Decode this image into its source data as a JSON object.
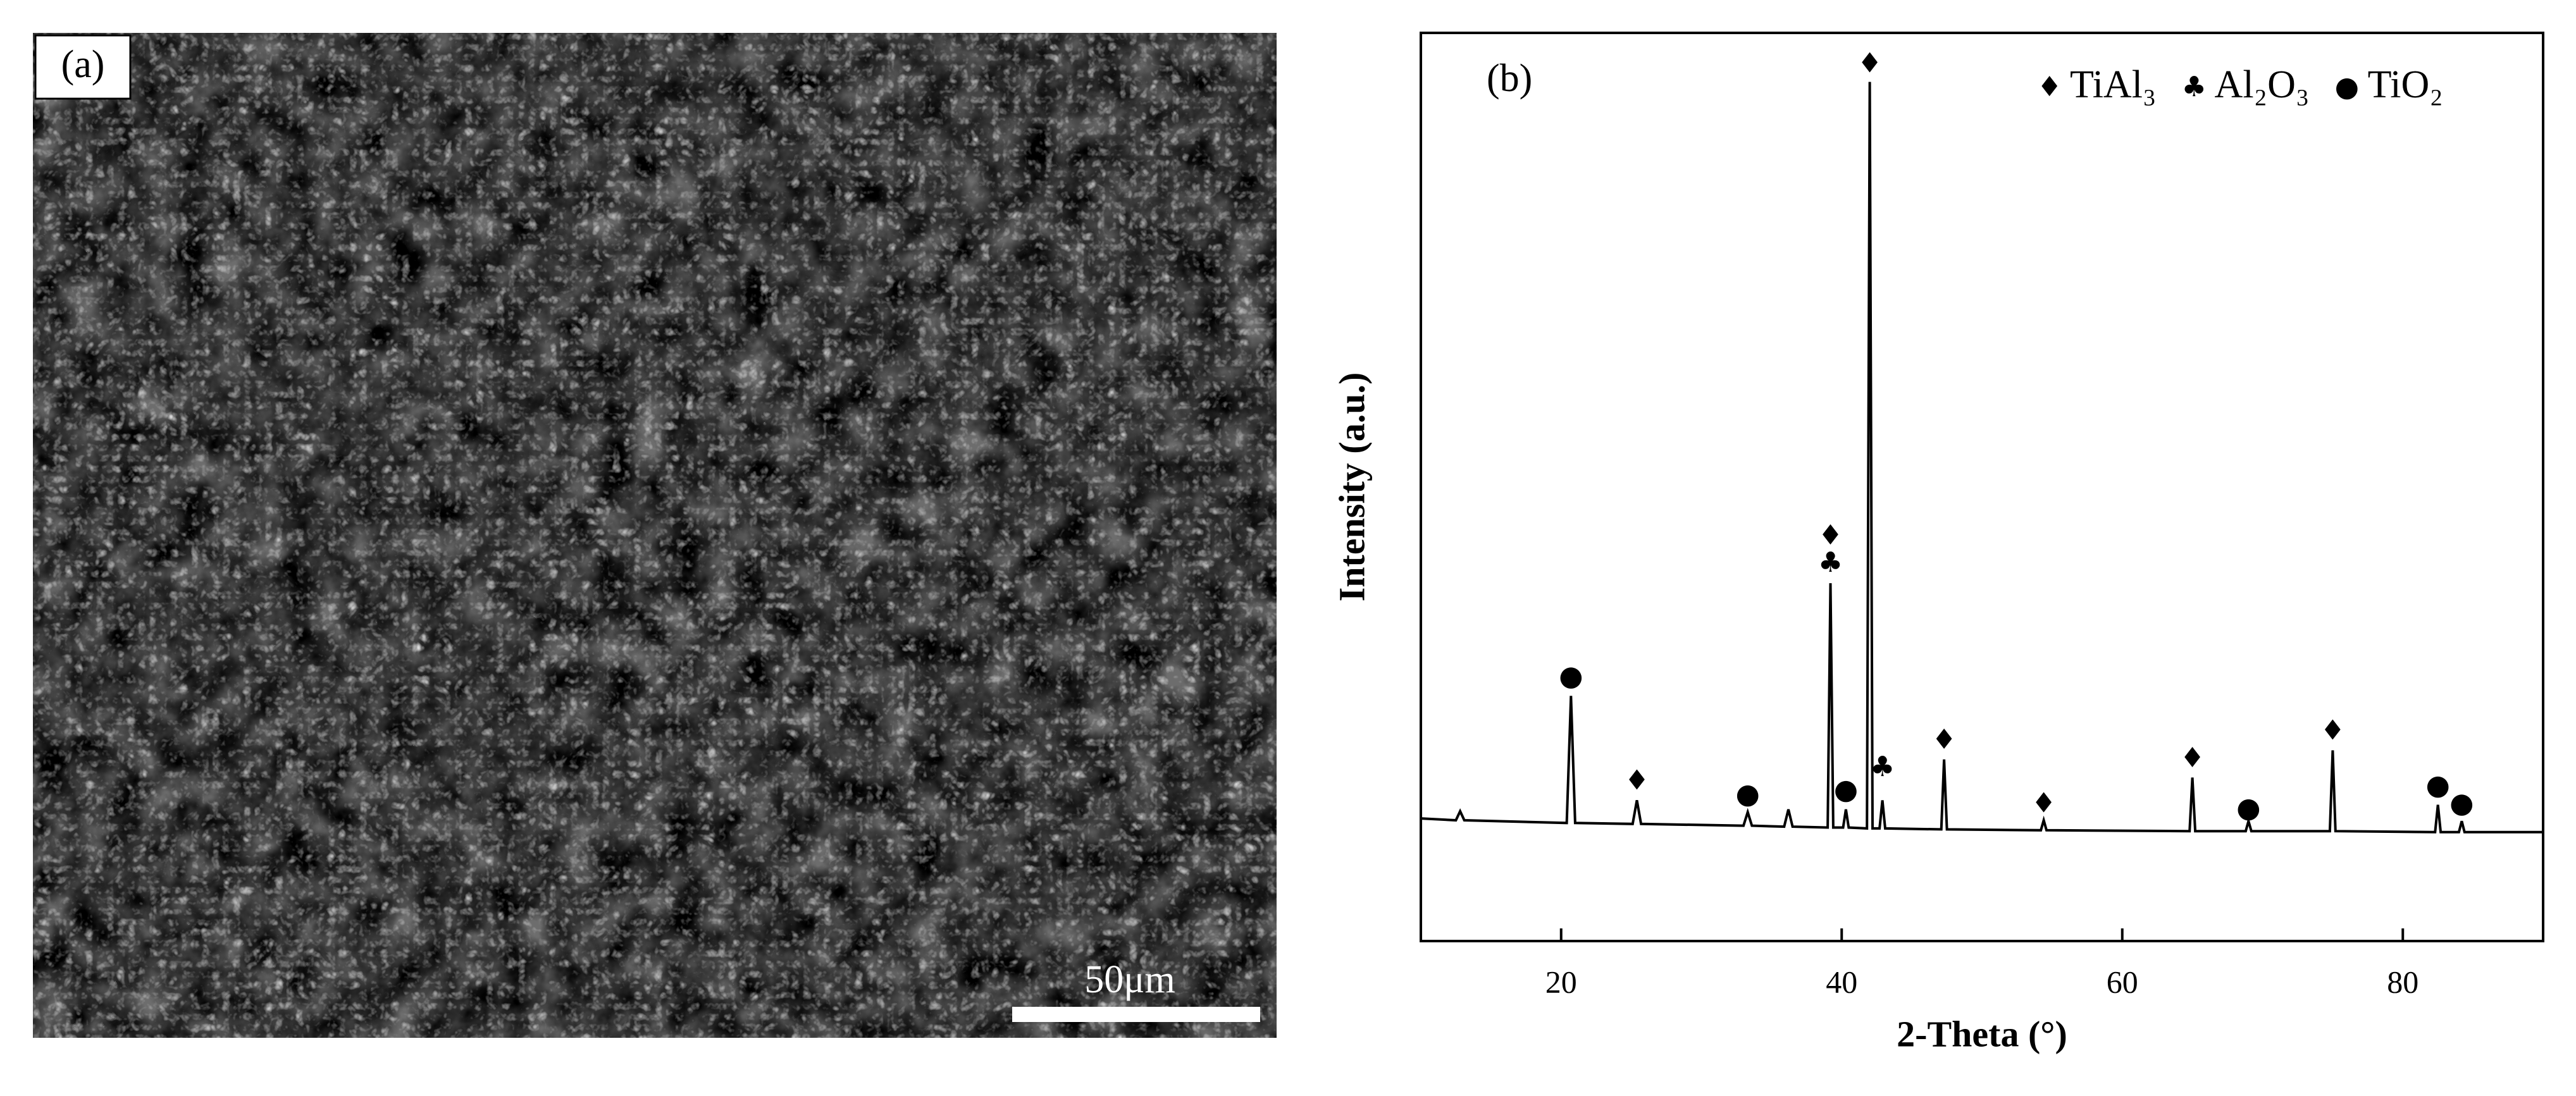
{
  "panel_a": {
    "label": "(a)",
    "scale_bar": "50μm"
  },
  "chart_data": {
    "type": "line",
    "panel_label": "(b)",
    "xlabel": "2-Theta (°)",
    "ylabel": "Intensity (a.u.)",
    "xlim": [
      10,
      90
    ],
    "xticks": [
      20,
      40,
      60,
      80
    ],
    "ylim": [
      0,
      100
    ],
    "series": [
      {
        "color": "#000000",
        "x": [
          10,
          12.5,
          12.8,
          13.1,
          20.4,
          20.7,
          21.0,
          25.1,
          25.4,
          25.7,
          33.0,
          33.3,
          33.6,
          35.9,
          36.2,
          36.5,
          39.0,
          39.2,
          39.4,
          40.1,
          40.3,
          40.5,
          41.8,
          42.0,
          42.2,
          42.7,
          42.9,
          43.1,
          47.1,
          47.3,
          47.5,
          54.2,
          54.4,
          54.6,
          64.8,
          65.0,
          65.2,
          68.8,
          69.0,
          69.2,
          74.8,
          75.0,
          75.2,
          82.3,
          82.5,
          82.7,
          84.0,
          84.2,
          84.4,
          90
        ],
        "values": [
          13.5,
          13.3,
          14.3,
          13.3,
          13,
          27,
          13,
          12.9,
          15.5,
          12.9,
          12.7,
          14.2,
          12.7,
          12.6,
          14.5,
          12.6,
          12.5,
          39.4,
          12.5,
          12.5,
          14.5,
          12.5,
          12.4,
          94.6,
          12.4,
          12.4,
          15.5,
          12.4,
          12.3,
          20,
          12.3,
          12.2,
          13.3,
          12.2,
          12.1,
          18,
          12.1,
          12.1,
          13.2,
          12.1,
          12.1,
          21,
          12.1,
          12.0,
          15,
          12.0,
          12.0,
          13.2,
          12.0,
          12.0
        ]
      }
    ],
    "annotations": [
      {
        "symbol": "●",
        "x": 20.7,
        "y": 29
      },
      {
        "symbol": "♦",
        "x": 25.4,
        "y": 17.5
      },
      {
        "symbol": "●",
        "x": 33.3,
        "y": 16
      },
      {
        "symbol": "♣",
        "x": 39.2,
        "y": 41.5
      },
      {
        "symbol": "♦",
        "x": 39.2,
        "y": 44.5
      },
      {
        "symbol": "●",
        "x": 40.3,
        "y": 16.5
      },
      {
        "symbol": "♣",
        "x": 42.9,
        "y": 19
      },
      {
        "symbol": "♦",
        "x": 42.0,
        "y": 96.5
      },
      {
        "symbol": "♦",
        "x": 47.3,
        "y": 22
      },
      {
        "symbol": "♦",
        "x": 54.4,
        "y": 15
      },
      {
        "symbol": "♦",
        "x": 65.0,
        "y": 20
      },
      {
        "symbol": "●",
        "x": 69.0,
        "y": 14.5
      },
      {
        "symbol": "♦",
        "x": 75.0,
        "y": 23
      },
      {
        "symbol": "●",
        "x": 82.5,
        "y": 17
      },
      {
        "symbol": "●",
        "x": 84.2,
        "y": 15
      }
    ],
    "legend": [
      {
        "symbol": "♦",
        "name": "TiAl₃"
      },
      {
        "symbol": "♣",
        "name": "Al₂O₃"
      },
      {
        "symbol": "●",
        "name": "TiO₂"
      }
    ],
    "legend_position": "upper right"
  }
}
